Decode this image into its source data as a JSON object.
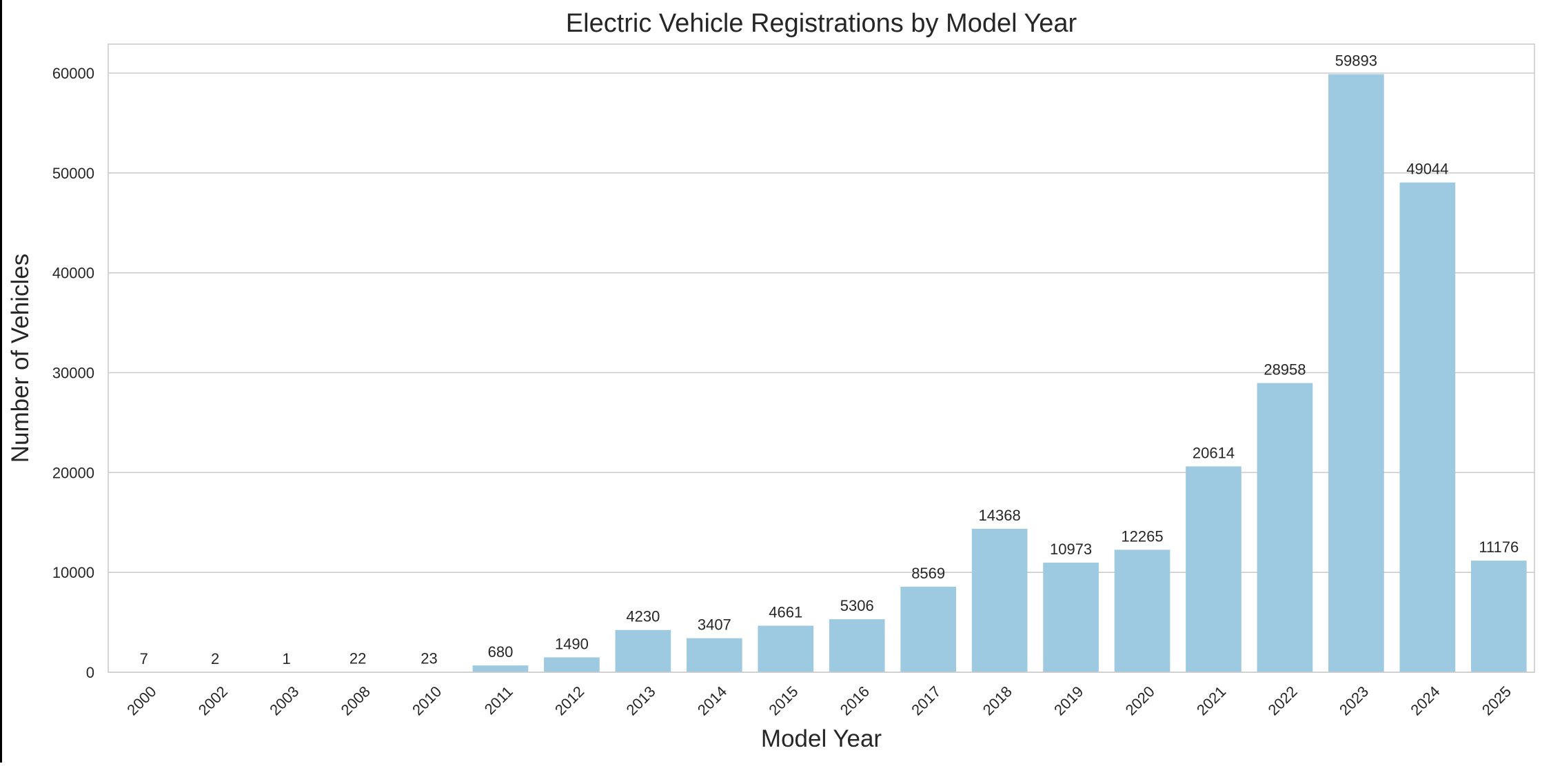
{
  "chart_data": {
    "type": "bar",
    "title": "Electric Vehicle Registrations by Model Year",
    "xlabel": "Model Year",
    "ylabel": "Number of Vehicles",
    "categories": [
      "2000",
      "2002",
      "2003",
      "2008",
      "2010",
      "2011",
      "2012",
      "2013",
      "2014",
      "2015",
      "2016",
      "2017",
      "2018",
      "2019",
      "2020",
      "2021",
      "2022",
      "2023",
      "2024",
      "2025"
    ],
    "values": [
      7,
      2,
      1,
      22,
      23,
      680,
      1490,
      4230,
      3407,
      4661,
      5306,
      8569,
      14368,
      10973,
      12265,
      20614,
      28958,
      59893,
      49044,
      11176
    ],
    "data_labels": [
      "7",
      "2",
      "1",
      "22",
      "23",
      "680",
      "1490",
      "4230",
      "3407",
      "4661",
      "5306",
      "8569",
      "14368",
      "10973",
      "12265",
      "20614",
      "28958",
      "59893",
      "49044",
      "11176"
    ],
    "y_ticks": [
      0,
      10000,
      20000,
      30000,
      40000,
      50000,
      60000
    ],
    "y_tick_labels": [
      "0",
      "10000",
      "20000",
      "30000",
      "40000",
      "50000",
      "60000"
    ],
    "ylim": [
      0,
      62900
    ],
    "grid": "horizontal",
    "bar_color": "#9ecae1",
    "x_tick_rotation_deg": 45
  }
}
